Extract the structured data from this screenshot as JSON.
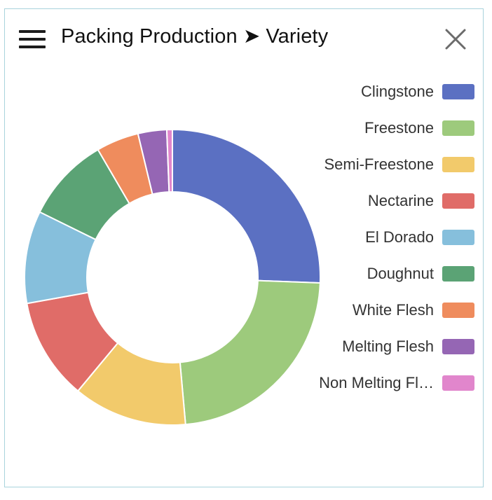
{
  "header": {
    "title": "Packing Production ➤ Variety"
  },
  "icons": {
    "menu": "hamburger-menu-icon",
    "close": "close-icon"
  },
  "chart_data": {
    "type": "pie",
    "donut": true,
    "title": "Packing Production ➤ Variety",
    "legend_position": "right",
    "categories": [
      "Clingstone",
      "Freestone",
      "Semi-Freestone",
      "Nectarine",
      "El Dorado",
      "Doughnut",
      "White Flesh",
      "Melting Flesh",
      "Non Melting Fl…"
    ],
    "values": [
      25.3,
      22.7,
      12.3,
      11.0,
      10.0,
      9.2,
      4.6,
      3.1,
      0.6
    ],
    "colors": [
      "#5b70c2",
      "#9dca7c",
      "#f2ca6b",
      "#e06c68",
      "#86bfdc",
      "#5ba375",
      "#ef8c5d",
      "#9566b4",
      "#e186cc"
    ]
  }
}
